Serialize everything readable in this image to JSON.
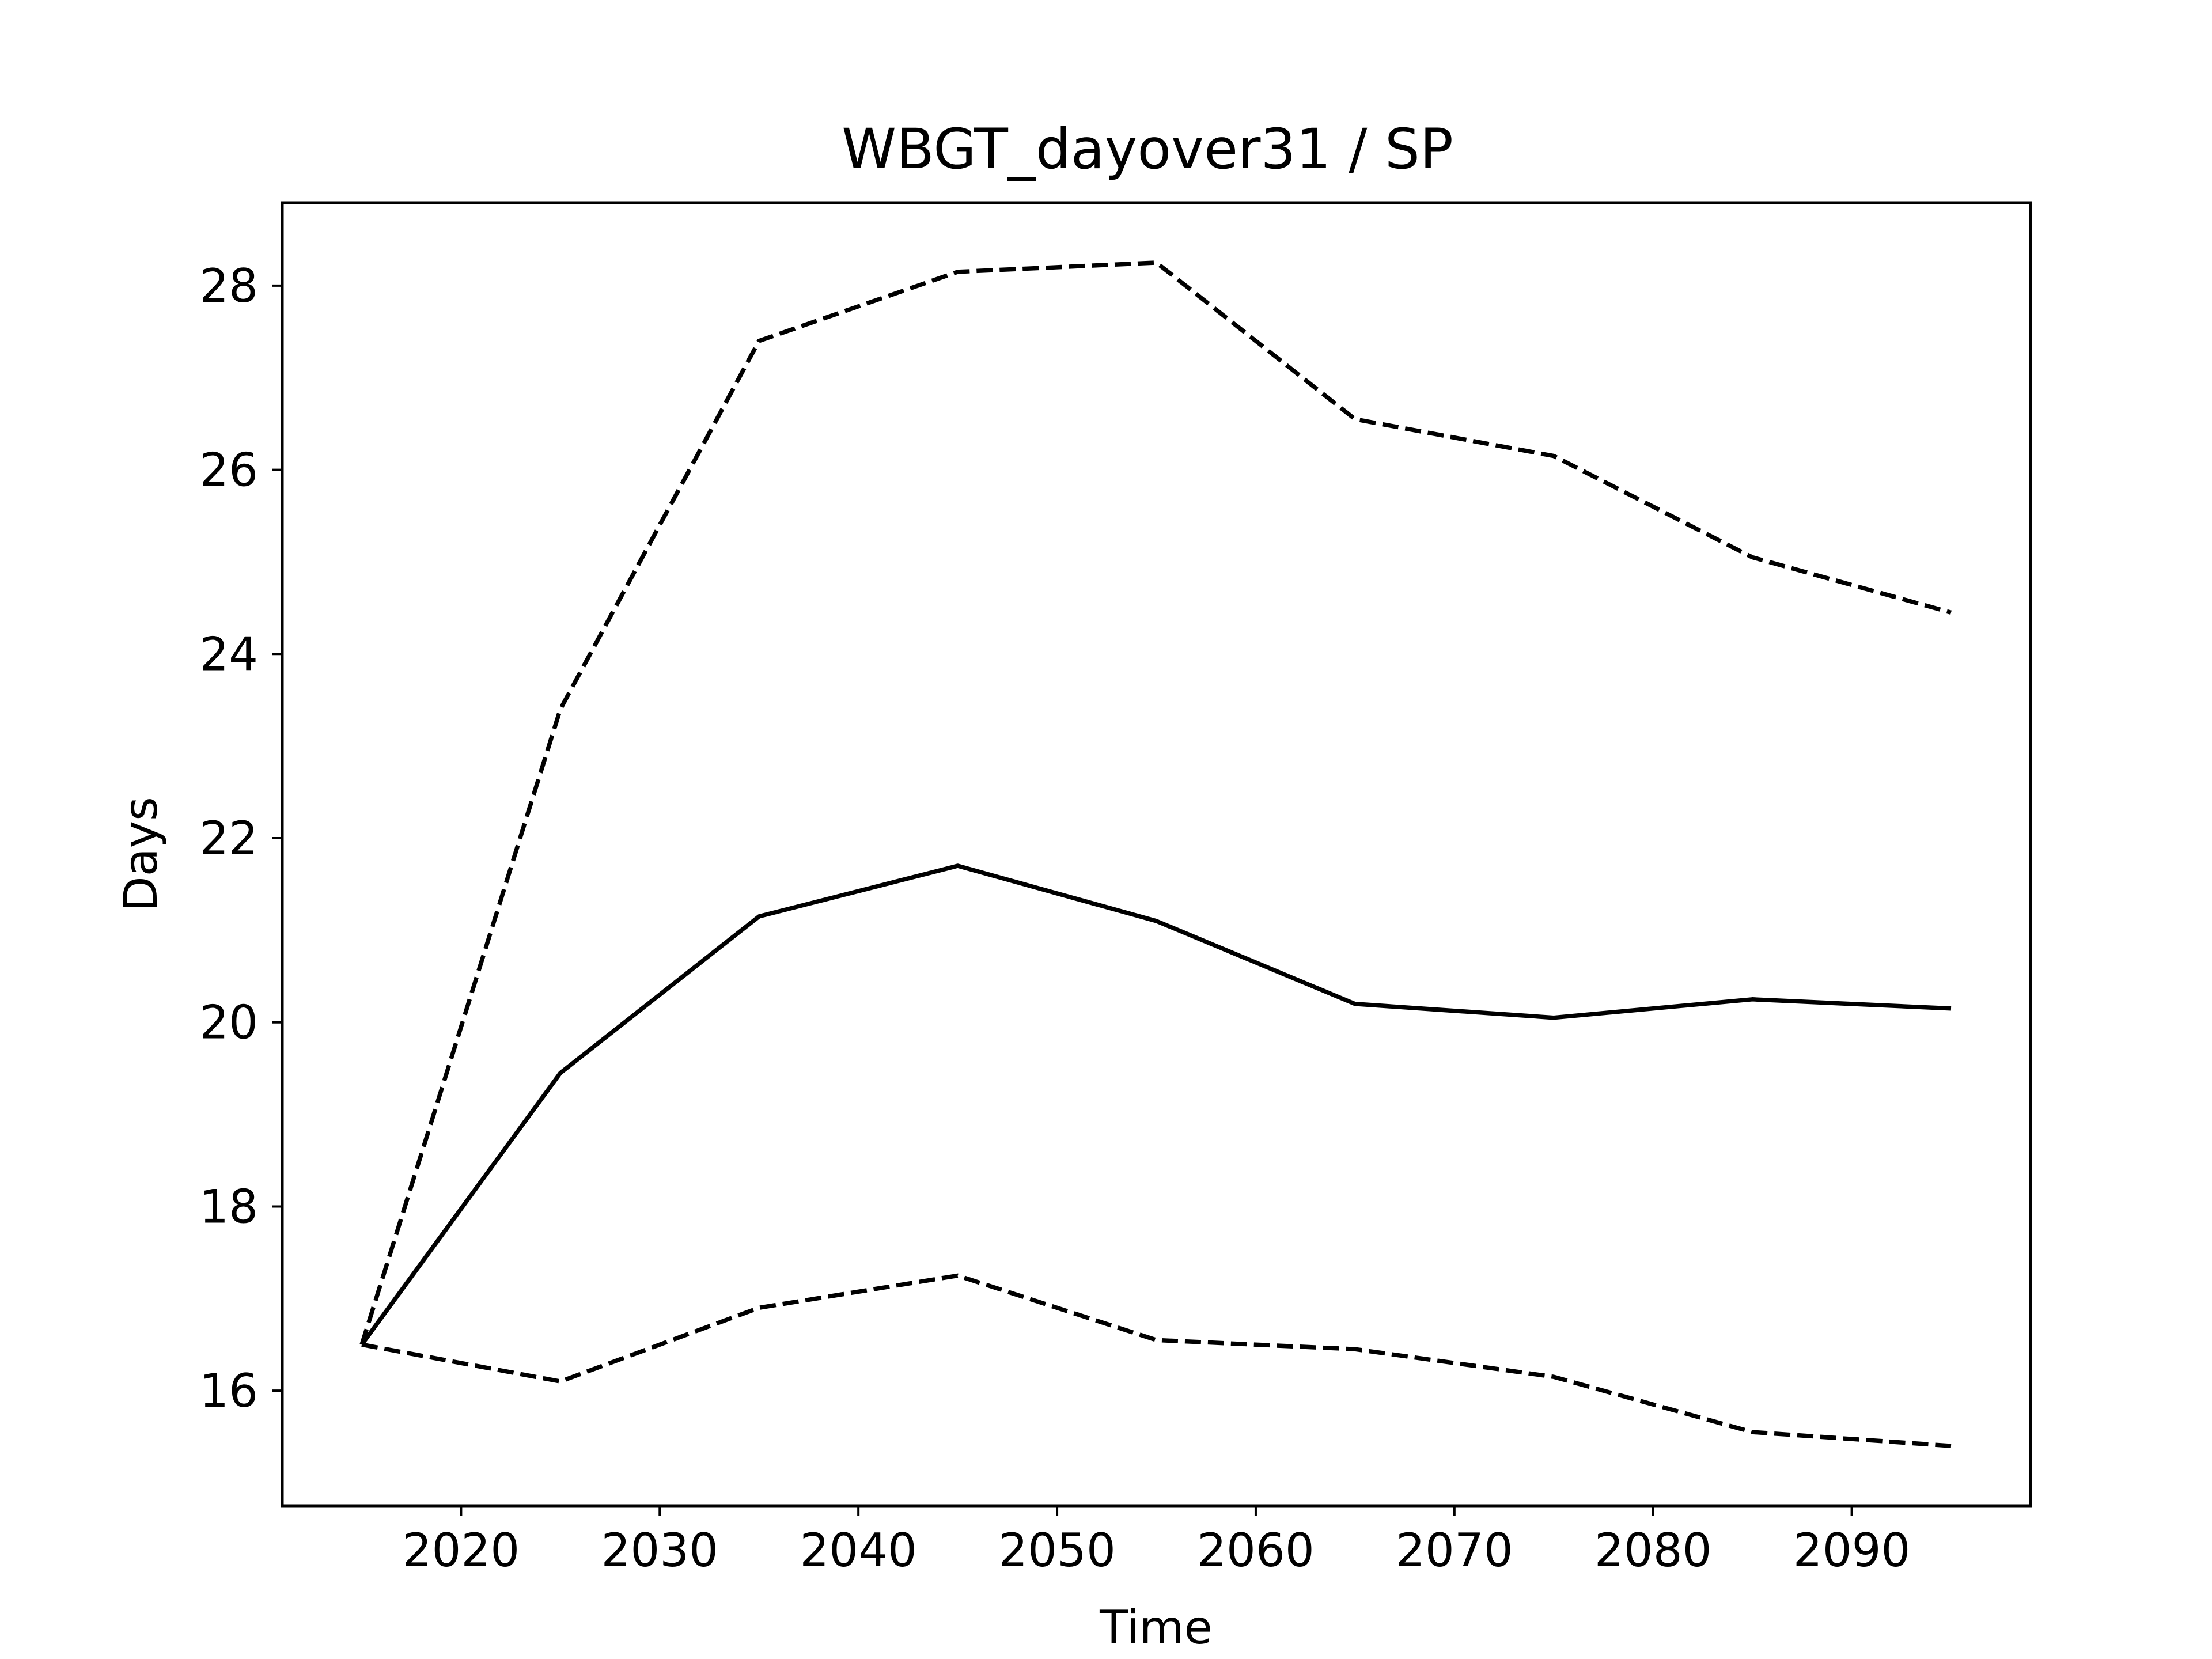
{
  "chart_data": {
    "type": "line",
    "title": "WBGT_dayover31 / SP",
    "xlabel": "Time",
    "ylabel": "Days",
    "x": [
      2015,
      2025,
      2035,
      2045,
      2055,
      2065,
      2075,
      2085,
      2095
    ],
    "xlim": [
      2011,
      2099
    ],
    "ylim": [
      14.75,
      28.9
    ],
    "xticks": [
      2020,
      2030,
      2040,
      2050,
      2060,
      2070,
      2080,
      2090
    ],
    "yticks": [
      16,
      18,
      20,
      22,
      24,
      26,
      28
    ],
    "grid": false,
    "series": [
      {
        "style": "solid",
        "color": "#000000",
        "values": [
          16.5,
          19.45,
          21.15,
          21.7,
          21.1,
          20.2,
          20.05,
          20.25,
          20.15
        ]
      },
      {
        "style": "dashed",
        "color": "#000000",
        "values": [
          16.5,
          23.4,
          27.4,
          28.15,
          28.25,
          26.55,
          26.15,
          25.05,
          24.45
        ]
      },
      {
        "style": "dashed",
        "color": "#000000",
        "values": [
          16.5,
          16.1,
          16.9,
          17.25,
          16.55,
          16.45,
          16.15,
          15.55,
          15.4
        ]
      }
    ]
  }
}
